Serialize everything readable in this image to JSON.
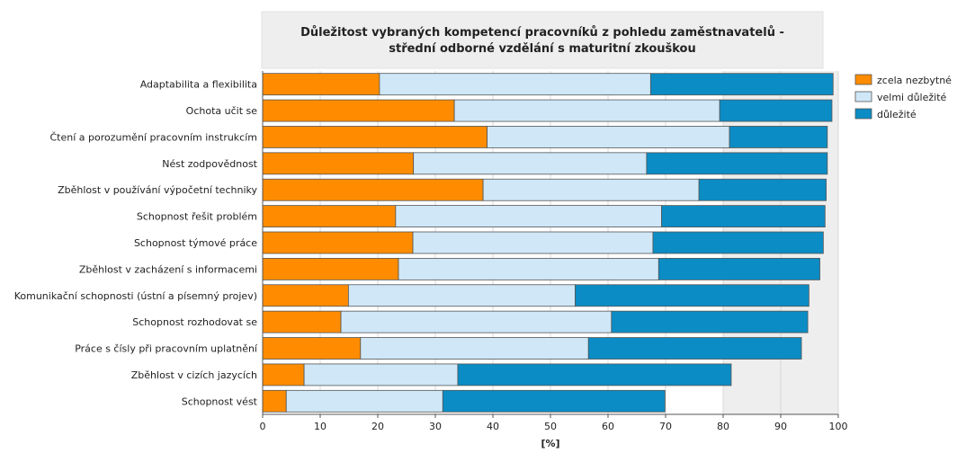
{
  "chart_data": {
    "type": "bar",
    "orientation": "horizontal",
    "stacked": true,
    "title_lines": [
      "Důležitost vybraných kompetencí pracovníků z pohledu zaměstnavatelů -",
      "střední odborné vzdělání s maturitní zkouškou"
    ],
    "xlabel": "[%]",
    "xlim": [
      0,
      100
    ],
    "xticks": [
      0,
      10,
      20,
      30,
      40,
      50,
      60,
      70,
      80,
      90,
      100
    ],
    "grid": true,
    "legend_position": "top-right",
    "categories": [
      "Adaptabilita a flexibilita",
      "Ochota učit se",
      "Čtení a porozumění pracovním instrukcím",
      "Nést zodpovědnost",
      "Zběhlost v používání výpočetní techniky",
      "Schopnost řešit problém",
      "Schopnost týmové práce",
      "Zběhlost v zacházení s informacemi",
      "Komunikační schopnosti (ústní a písemný projev)",
      "Schopnost rozhodovat se",
      "Práce s čísly při pracovním uplatnění",
      "Zběhlost v cizích jazycích",
      "Schopnost vést"
    ],
    "series": [
      {
        "name": "zcela nezbytné",
        "color": "#ff8c00",
        "values": [
          20.3,
          33.3,
          39.0,
          26.2,
          38.3,
          23.1,
          26.1,
          23.6,
          14.9,
          13.6,
          17.0,
          7.2,
          4.1
        ]
      },
      {
        "name": "velmi důležité",
        "color": "#cfe7f7",
        "values": [
          47.1,
          46.1,
          42.1,
          40.5,
          37.5,
          46.2,
          41.7,
          45.2,
          39.4,
          47.0,
          39.6,
          26.7,
          27.2
        ]
      },
      {
        "name": "důležité",
        "color": "#0b8cc4",
        "values": [
          31.7,
          19.5,
          17.0,
          31.4,
          22.1,
          28.4,
          29.6,
          28.0,
          40.6,
          34.1,
          37.0,
          47.5,
          38.6
        ]
      }
    ]
  }
}
